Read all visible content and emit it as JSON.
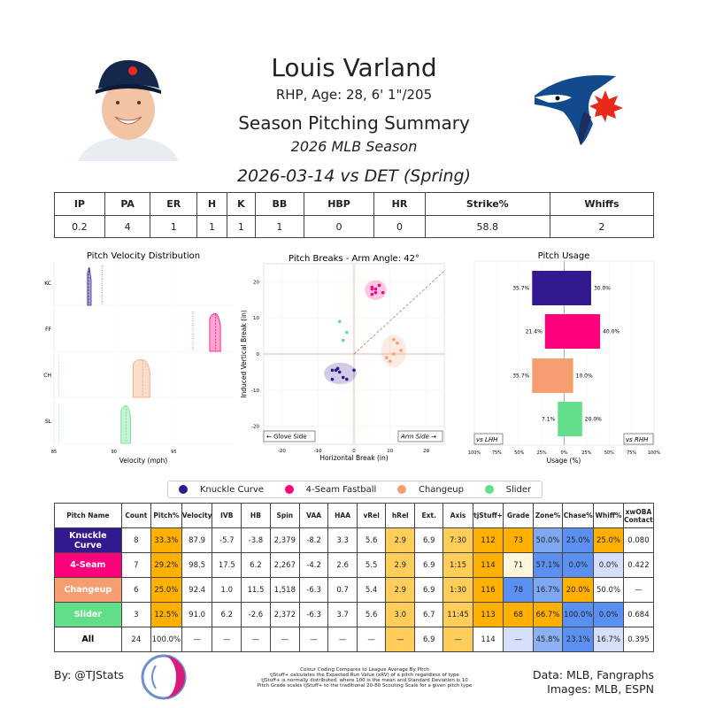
{
  "header": {
    "name": "Louis Varland",
    "bio": "RHP, Age: 28, 6' 1\"/205",
    "subtitle": "Season Pitching Summary",
    "season": "2026 MLB Season",
    "game": "2026-03-14 vs DET (Spring)"
  },
  "stats": {
    "headers": [
      "IP",
      "PA",
      "ER",
      "H",
      "K",
      "BB",
      "HBP",
      "HR",
      "Strike%",
      "Whiffs"
    ],
    "values": [
      "0.2",
      "4",
      "1",
      "1",
      "1",
      "1",
      "0",
      "0",
      "58.8",
      "2"
    ]
  },
  "colors": {
    "KC": "#33198f",
    "FF": "#ff007d",
    "CH": "#f79e70",
    "SL": "#62dd8a",
    "good": "#5b8ff0",
    "mid": "#d5e0f8",
    "bad": "#ffb000",
    "warm": "#ffce5a"
  },
  "velocity_chart": {
    "title": "Pitch Velocity Distribution",
    "xlabel": "Velocity (mph)",
    "x_ticks": [
      "85",
      "90",
      "95"
    ],
    "rows": [
      "KC",
      "FF",
      "CH",
      "SL"
    ]
  },
  "breaks_chart": {
    "title": "Pitch Breaks - Arm Angle: 42°",
    "xlabel": "Horizontal Break (in)",
    "ylabel": "Induced Vertical Break (in)",
    "x_ticks": [
      "-20",
      "-10",
      "0",
      "10",
      "20"
    ],
    "y_ticks": [
      "20",
      "10",
      "0",
      "-10",
      "-20"
    ],
    "left_note": "← Glove Side",
    "right_note": "Arm Side →"
  },
  "usage_chart": {
    "title": "Pitch Usage",
    "xlabel": "Usage (%)",
    "x_ticks": [
      "100%",
      "75%",
      "50%",
      "25%",
      "0%",
      "25%",
      "50%",
      "75%",
      "100%"
    ],
    "left_note": "vs LHH",
    "right_note": "vs RHH"
  },
  "legend": [
    {
      "label": "Knuckle Curve",
      "color": "#33198f"
    },
    {
      "label": "4-Seam Fastball",
      "color": "#ff007d"
    },
    {
      "label": "Changeup",
      "color": "#f79e70"
    },
    {
      "label": "Slider",
      "color": "#62dd8a"
    }
  ],
  "arsenal": {
    "headers": [
      "Pitch Name",
      "Count",
      "Pitch%",
      "Velocity",
      "IVB",
      "HB",
      "Spin",
      "VAA",
      "HAA",
      "vRel",
      "hRel",
      "Ext.",
      "Axis",
      "tjStuff+",
      "Grade",
      "Zone%",
      "Chase%",
      "Whiff%",
      "xwOBA Contact"
    ],
    "rows": [
      {
        "name": "Knuckle Curve",
        "color": "#33198f",
        "cells": [
          "8",
          "33.3%",
          "87.9",
          "-5.7",
          "-3.8",
          "2,379",
          "-8.2",
          "3.3",
          "5.6",
          "2.9",
          "6.9",
          "7:30",
          "112",
          "73",
          "50.0%",
          "25.0%",
          "25.0%",
          "0.080"
        ]
      },
      {
        "name": "4-Seam",
        "color": "#ff007d",
        "cells": [
          "7",
          "29.2%",
          "98.5",
          "17.5",
          "6.2",
          "2,267",
          "-4.2",
          "2.6",
          "5.5",
          "2.9",
          "6.9",
          "1:15",
          "114",
          "71",
          "57.1%",
          "0.0%",
          "0.0%",
          "0.422"
        ]
      },
      {
        "name": "Changeup",
        "color": "#f79e70",
        "cells": [
          "6",
          "25.0%",
          "92.4",
          "1.0",
          "11.5",
          "1,518",
          "-6.3",
          "0.7",
          "5.4",
          "2.9",
          "6.9",
          "1:30",
          "116",
          "78",
          "16.7%",
          "20.0%",
          "50.0%",
          "—"
        ]
      },
      {
        "name": "Slider",
        "color": "#62dd8a",
        "cells": [
          "3",
          "12.5%",
          "91.0",
          "6.2",
          "-2.6",
          "2,372",
          "-6.3",
          "3.7",
          "5.6",
          "3.0",
          "6.7",
          "11:45",
          "113",
          "68",
          "66.7%",
          "100.0%",
          "0.0%",
          "0.684"
        ]
      },
      {
        "name": "All",
        "color": "#ffffff",
        "cells": [
          "24",
          "100.0%",
          "—",
          "—",
          "—",
          "—",
          "—",
          "—",
          "—",
          "—",
          "6.9",
          "—",
          "114",
          "—",
          "45.8%",
          "23.1%",
          "16.7%",
          "0.395"
        ]
      }
    ]
  },
  "chart_data": [
    {
      "type": "area",
      "title": "Pitch Velocity Distribution",
      "xlabel": "Velocity (mph)",
      "xlim": [
        85,
        100
      ],
      "series": [
        {
          "name": "KC",
          "range": [
            87.8,
            88.1
          ],
          "mean": 87.9,
          "league_mean": 89.0
        },
        {
          "name": "FF",
          "range": [
            98.0,
            98.9
          ],
          "mean": 98.5,
          "league_mean": 96.6
        },
        {
          "name": "CH",
          "range": [
            91.6,
            93.0
          ],
          "mean": 92.4,
          "league_mean": 85.4
        },
        {
          "name": "SL",
          "range": [
            90.6,
            91.4
          ],
          "mean": 91.0,
          "league_mean": 85.4
        }
      ]
    },
    {
      "type": "scatter",
      "title": "Pitch Breaks - Arm Angle: 42°",
      "xlabel": "Horizontal Break (in)",
      "ylabel": "Induced Vertical Break (in)",
      "xlim": [
        -25,
        25
      ],
      "ylim": [
        -25,
        25
      ],
      "series": [
        {
          "name": "KC",
          "points": [
            [
              -5,
              -4.5
            ],
            [
              -4,
              -5
            ],
            [
              -3,
              -6.5
            ],
            [
              -2,
              -7
            ],
            [
              -4.5,
              -4
            ],
            [
              0,
              -4.5
            ],
            [
              -6,
              -4.5
            ],
            [
              -6,
              -7
            ]
          ]
        },
        {
          "name": "FF",
          "points": [
            [
              5,
              18.5
            ],
            [
              6,
              18
            ],
            [
              7,
              19
            ],
            [
              8,
              17
            ],
            [
              6,
              17
            ],
            [
              5,
              18
            ],
            [
              5,
              16.5
            ]
          ]
        },
        {
          "name": "CH",
          "points": [
            [
              10,
              -2
            ],
            [
              11,
              4
            ],
            [
              12,
              3
            ],
            [
              13,
              1
            ],
            [
              11,
              0
            ],
            [
              9,
              -1
            ]
          ]
        },
        {
          "name": "SL",
          "points": [
            [
              -4,
              9
            ],
            [
              -2,
              6
            ],
            [
              -3,
              3.8
            ]
          ]
        }
      ]
    },
    {
      "type": "bar",
      "title": "Pitch Usage",
      "xlabel": "Usage (%)",
      "categories": [
        "KC",
        "FF",
        "CH",
        "SL"
      ],
      "series": [
        {
          "name": "vs LHH",
          "values": [
            35.7,
            21.4,
            35.7,
            7.1
          ]
        },
        {
          "name": "vs RHH",
          "values": [
            30.0,
            40.0,
            10.0,
            20.0
          ]
        }
      ]
    }
  ],
  "footer": {
    "left": "By: @TJStats",
    "mid": [
      "Colour Coding Compares to League Average By Pitch",
      "tjStuff+ calculates the Expected Run Value (xRV) of a pitch regardless of type",
      "tjStuff+ is normally distributed, where 100 is the mean and Standard Deviation is 10",
      "Pitch Grade scales tjStuff+ to the traditional 20-80 Scouting Scale for a given pitch type"
    ],
    "right1": "Data: MLB, Fangraphs",
    "right2": "Images: MLB, ESPN"
  }
}
